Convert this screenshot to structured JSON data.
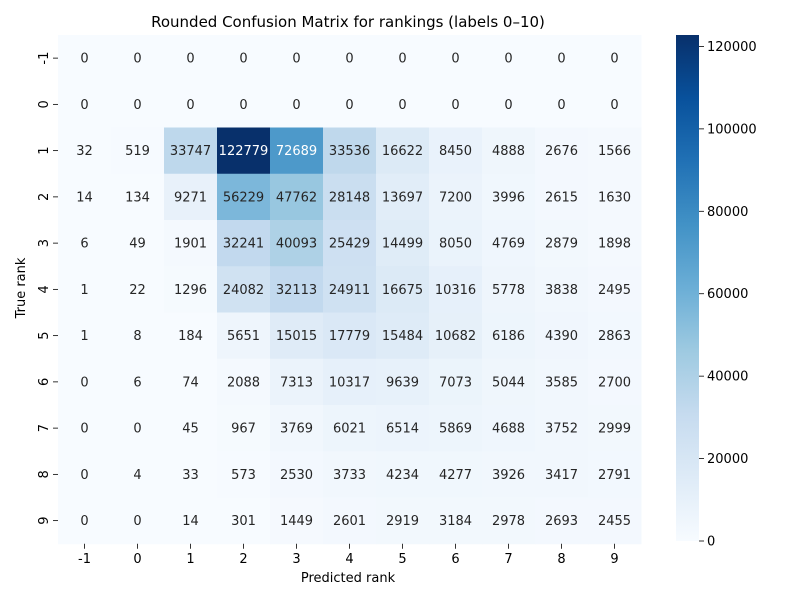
{
  "chart_data": {
    "type": "heatmap",
    "title": "Rounded Confusion Matrix for rankings (labels 0–10)",
    "xlabel": "Predicted rank",
    "ylabel": "True rank",
    "x_categories": [
      "-1",
      "0",
      "1",
      "2",
      "3",
      "4",
      "5",
      "6",
      "7",
      "8",
      "9"
    ],
    "y_categories": [
      "-1",
      "0",
      "1",
      "2",
      "3",
      "4",
      "5",
      "6",
      "7",
      "8",
      "9"
    ],
    "values": [
      [
        0,
        0,
        0,
        0,
        0,
        0,
        0,
        0,
        0,
        0,
        0
      ],
      [
        0,
        0,
        0,
        0,
        0,
        0,
        0,
        0,
        0,
        0,
        0
      ],
      [
        32,
        519,
        33747,
        122779,
        72689,
        33536,
        16622,
        8450,
        4888,
        2676,
        1566
      ],
      [
        14,
        134,
        9271,
        56229,
        47762,
        28148,
        13697,
        7200,
        3996,
        2615,
        1630
      ],
      [
        6,
        49,
        1901,
        32241,
        40093,
        25429,
        14499,
        8050,
        4769,
        2879,
        1898
      ],
      [
        1,
        22,
        1296,
        24082,
        32113,
        24911,
        16675,
        10316,
        5778,
        3838,
        2495
      ],
      [
        1,
        8,
        184,
        5651,
        15015,
        17779,
        15484,
        10682,
        6186,
        4390,
        2863
      ],
      [
        0,
        6,
        74,
        2088,
        7313,
        10317,
        9639,
        7073,
        5044,
        3585,
        2700
      ],
      [
        0,
        0,
        45,
        967,
        3769,
        6021,
        6514,
        5869,
        4688,
        3752,
        2999
      ],
      [
        0,
        4,
        33,
        573,
        2530,
        3733,
        4234,
        4277,
        3926,
        3417,
        2791
      ],
      [
        0,
        0,
        14,
        301,
        1449,
        2601,
        2919,
        3184,
        2978,
        2693,
        2455
      ]
    ],
    "colormap": "Blues",
    "color_range": [
      0,
      122779
    ],
    "colorbar_ticks": [
      0,
      20000,
      40000,
      60000,
      80000,
      100000,
      120000
    ],
    "grid": false,
    "legend": "colorbar-right"
  }
}
